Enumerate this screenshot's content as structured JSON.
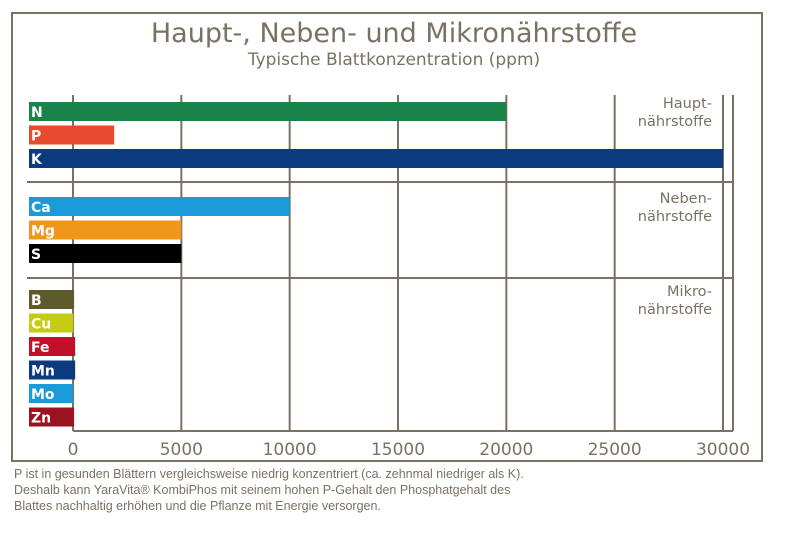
{
  "chart_data": {
    "type": "bar",
    "orientation": "horizontal",
    "title": "Haupt-, Neben- und Mikronährstoffe",
    "subtitle": "Typische Blattkonzentration (ppm)",
    "xlabel": "",
    "ylabel": "",
    "xlim": [
      0,
      30000
    ],
    "xticks": [
      0,
      5000,
      10000,
      15000,
      20000,
      25000,
      30000
    ],
    "xtick_labels": [
      "0",
      "5000",
      "10000",
      "15000",
      "20000",
      "25000",
      "30000"
    ],
    "grid": true,
    "groups": [
      {
        "name": "Haupt- nährstoffe",
        "label_lines": [
          "Haupt-",
          "nährstoffe"
        ],
        "bars": [
          {
            "label": "N",
            "value": 20000,
            "color": "#1a8349"
          },
          {
            "label": "P",
            "value": 1900,
            "color": "#e64b2e"
          },
          {
            "label": "K",
            "value": 30000,
            "color": "#0b3b7e"
          }
        ]
      },
      {
        "name": "Neben- nährstoffe",
        "label_lines": [
          "Neben-",
          "nährstoffe"
        ],
        "bars": [
          {
            "label": "Ca",
            "value": 10000,
            "color": "#1a9ad8"
          },
          {
            "label": "Mg",
            "value": 5000,
            "color": "#f0961a"
          },
          {
            "label": "S",
            "value": 5000,
            "color": "#000000"
          }
        ]
      },
      {
        "name": "Mikro- nährstoffe",
        "label_lines": [
          "Mikro-",
          "nährstoffe"
        ],
        "bars": [
          {
            "label": "B",
            "value": 50,
            "color": "#5d5a2c"
          },
          {
            "label": "Cu",
            "value": 10,
            "color": "#c6cc12"
          },
          {
            "label": "Fe",
            "value": 100,
            "color": "#c0102a"
          },
          {
            "label": "Mn",
            "value": 100,
            "color": "#0b3b7e"
          },
          {
            "label": "Mo",
            "value": 1,
            "color": "#1a9ad8"
          },
          {
            "label": "Zn",
            "value": 50,
            "color": "#9b1220"
          }
        ]
      }
    ]
  },
  "footnote": {
    "line1": "P ist in gesunden Blättern vergleichsweise niedrig konzentriert (ca. zehnmal niedriger als K).",
    "line2": "Deshalb kann YaraVita® KombiPhos mit seinem hohen P-Gehalt den Phosphatgehalt des",
    "line3": "Blattes nachhaltig erhöhen und die Pflanze mit Energie versorgen."
  },
  "colors": {
    "frame": "#7b7163",
    "grid": "#7b7163",
    "text": "#7b7163"
  }
}
